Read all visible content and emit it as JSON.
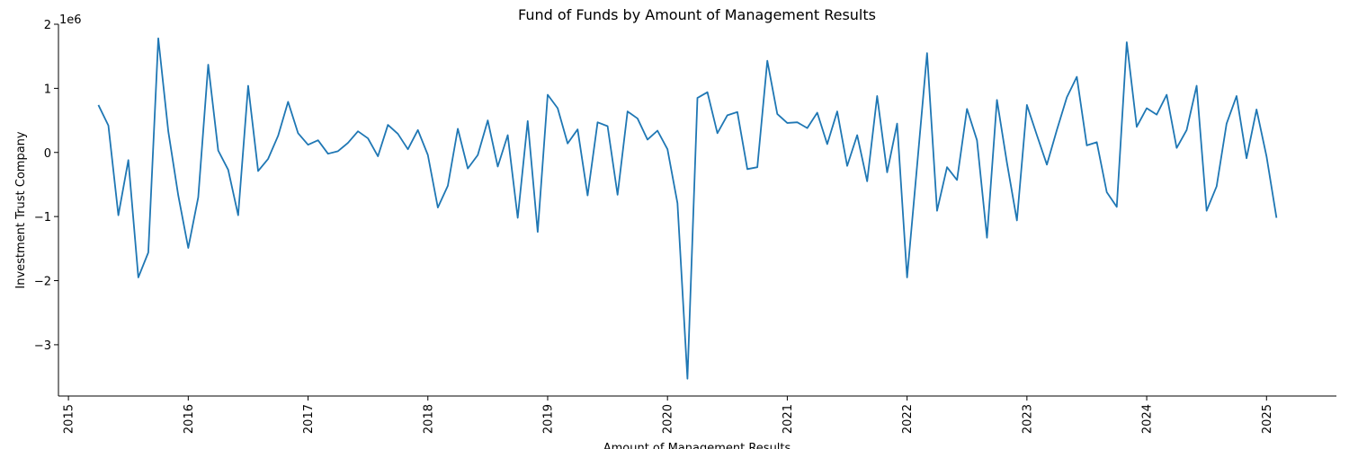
{
  "chart_data": {
    "type": "line",
    "title": "Fund of Funds by Amount of Management Results",
    "xlabel": "Amount of Management Results",
    "ylabel": "Investment Trust Company",
    "y_offset_label": "1e6",
    "x_tick_labels": [
      "2015",
      "2016",
      "2017",
      "2018",
      "2019",
      "2020",
      "2021",
      "2022",
      "2023",
      "2024",
      "2025"
    ],
    "y_tick_values": [
      -3,
      -2,
      -1,
      0,
      1,
      2
    ],
    "y_tick_labels": [
      "−3",
      "−2",
      "−1",
      "0",
      "1",
      "2"
    ],
    "xlim": [
      "2014-12-01",
      "2025-08-01"
    ],
    "ylim": [
      -3.8,
      2.0
    ],
    "grid": false,
    "line_color": "#1f77b4",
    "series": [
      {
        "x": [
          "2015-04",
          "2015-05",
          "2015-06",
          "2015-07",
          "2015-08",
          "2015-09",
          "2015-10",
          "2015-11",
          "2015-12",
          "2016-01",
          "2016-02",
          "2016-03",
          "2016-04",
          "2016-05",
          "2016-06",
          "2016-07",
          "2016-08",
          "2016-09",
          "2016-10",
          "2016-11",
          "2016-12",
          "2017-01",
          "2017-02",
          "2017-03",
          "2017-04",
          "2017-05",
          "2017-06",
          "2017-07",
          "2017-08",
          "2017-09",
          "2017-10",
          "2017-11",
          "2017-12",
          "2018-01",
          "2018-02",
          "2018-03",
          "2018-04",
          "2018-05",
          "2018-06",
          "2018-07",
          "2018-08",
          "2018-09",
          "2018-10",
          "2018-11",
          "2018-12",
          "2019-01",
          "2019-02",
          "2019-03",
          "2019-04",
          "2019-05",
          "2019-06",
          "2019-07",
          "2019-08",
          "2019-09",
          "2019-10",
          "2019-11",
          "2019-12",
          "2020-01",
          "2020-02",
          "2020-03",
          "2020-04",
          "2020-05",
          "2020-06",
          "2020-07",
          "2020-08",
          "2020-09",
          "2020-10",
          "2020-11",
          "2020-12",
          "2021-01",
          "2021-02",
          "2021-03",
          "2021-04",
          "2021-05",
          "2021-06",
          "2021-07",
          "2021-08",
          "2021-09",
          "2021-10",
          "2021-11",
          "2021-12",
          "2022-01",
          "2022-02",
          "2022-03",
          "2022-04",
          "2022-05",
          "2022-06",
          "2022-07",
          "2022-08",
          "2022-09",
          "2022-10",
          "2022-11",
          "2022-12",
          "2023-01",
          "2023-02",
          "2023-03",
          "2023-04",
          "2023-05",
          "2023-06",
          "2023-07",
          "2023-08",
          "2023-09",
          "2023-10",
          "2023-11",
          "2023-12",
          "2024-01",
          "2024-02",
          "2024-03",
          "2024-04",
          "2024-05",
          "2024-06",
          "2024-07",
          "2024-08",
          "2024-09",
          "2024-10",
          "2024-11",
          "2024-12",
          "2025-01",
          "2025-02"
        ],
        "values": [
          0.74,
          0.42,
          -0.98,
          -0.12,
          -1.95,
          -1.56,
          1.78,
          0.33,
          -0.67,
          -1.49,
          -0.7,
          1.37,
          0.03,
          -0.27,
          -0.98,
          1.04,
          -0.29,
          -0.1,
          0.26,
          0.79,
          0.3,
          0.12,
          0.19,
          -0.02,
          0.02,
          0.15,
          0.33,
          0.22,
          -0.06,
          0.43,
          0.29,
          0.05,
          0.35,
          -0.04,
          -0.86,
          -0.52,
          0.37,
          -0.25,
          -0.04,
          0.5,
          -0.22,
          0.27,
          -1.02,
          0.49,
          -1.24,
          0.9,
          0.69,
          0.14,
          0.36,
          -0.67,
          0.47,
          0.41,
          -0.66,
          0.64,
          0.53,
          0.2,
          0.34,
          0.05,
          -0.79,
          -3.53,
          0.85,
          0.94,
          0.3,
          0.58,
          0.63,
          -0.26,
          -0.23,
          1.43,
          0.6,
          0.46,
          0.47,
          0.38,
          0.62,
          0.13,
          0.64,
          -0.21,
          0.27,
          -0.45,
          0.88,
          -0.31,
          0.45,
          -1.95,
          -0.21,
          1.55,
          -0.91,
          -0.23,
          -0.43,
          0.68,
          0.19,
          -1.33,
          0.82,
          -0.16,
          -1.06,
          0.74,
          0.27,
          -0.19,
          0.35,
          0.86,
          1.18,
          0.11,
          0.16,
          -0.62,
          -0.85,
          1.72,
          0.4,
          0.69,
          0.59,
          0.9,
          0.07,
          0.35,
          1.04,
          -0.91,
          -0.53,
          0.45,
          0.88,
          -0.09,
          0.67,
          -0.06,
          -1.02
        ]
      }
    ]
  }
}
